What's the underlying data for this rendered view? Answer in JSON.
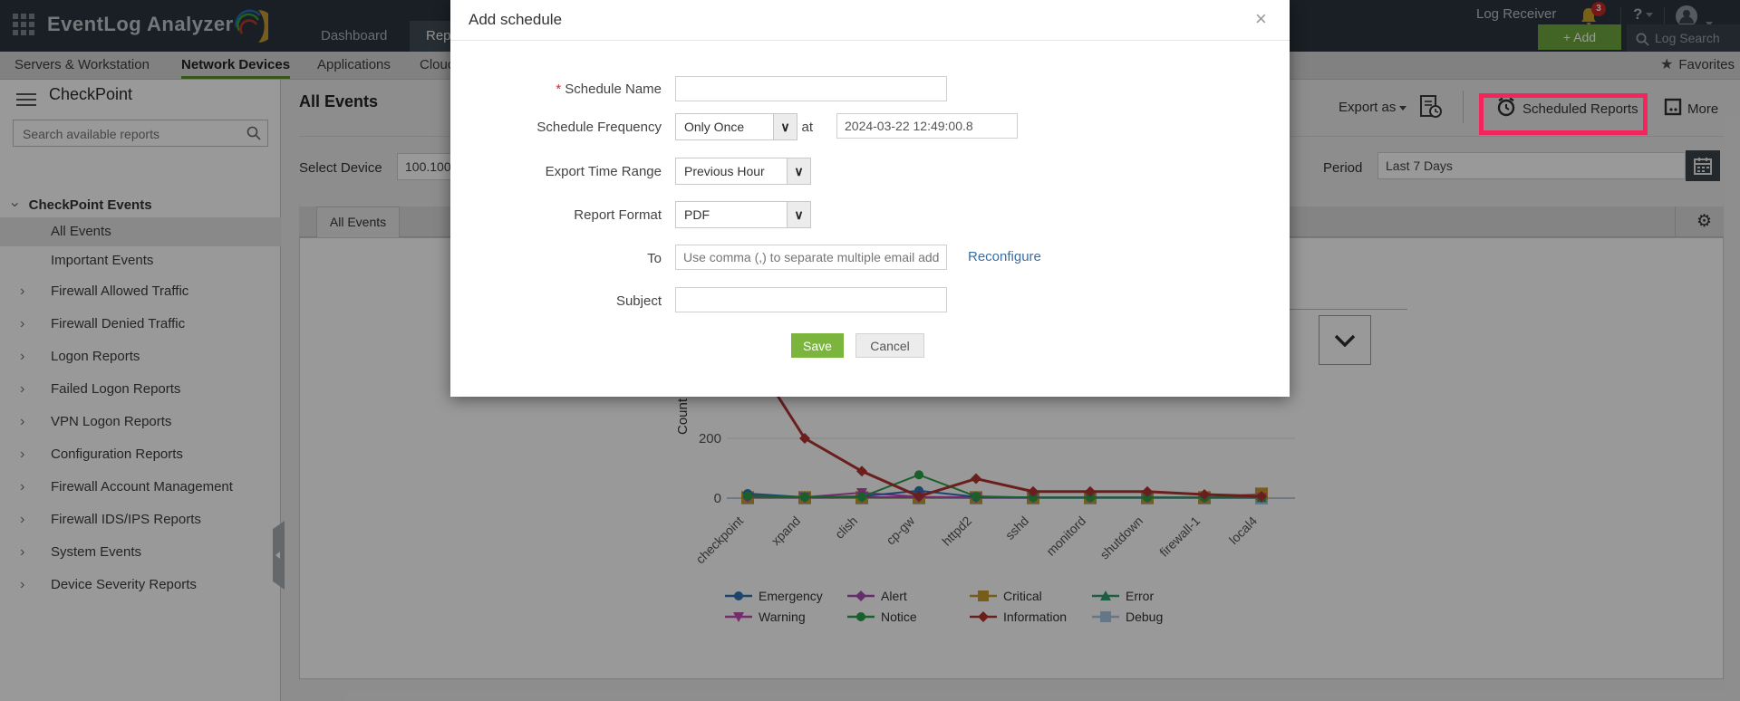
{
  "header": {
    "product": "EventLog Analyzer",
    "tab_dashboard": "Dashboard",
    "tab_reports": "Reports",
    "log_receiver": "Log Receiver",
    "notification_count": "3",
    "help": "?",
    "add_button": "+ Add",
    "log_search": "Log Search"
  },
  "nav": {
    "items": [
      "Servers & Workstation",
      "Network Devices",
      "Applications",
      "Cloud"
    ],
    "favorites": "Favorites"
  },
  "sidebar": {
    "title": "CheckPoint",
    "search_placeholder": "Search available reports",
    "group_label": "CheckPoint Events",
    "items": [
      "All Events",
      "Important Events",
      "Firewall Allowed Traffic",
      "Firewall Denied Traffic",
      "Logon Reports",
      "Failed Logon Reports",
      "VPN Logon Reports",
      "Configuration Reports",
      "Firewall Account Management",
      "Firewall IDS/IPS Reports",
      "System Events",
      "Device Severity Reports"
    ]
  },
  "main": {
    "title": "All Events",
    "export_as": "Export as",
    "scheduled_reports": "Scheduled Reports",
    "more": "More",
    "select_device_label": "Select Device",
    "select_device_value": "100.100",
    "period_label": "Period",
    "period_value": "Last 7 Days",
    "active_tab": "All Events"
  },
  "modal": {
    "title": "Add schedule",
    "close": "×",
    "schedule_name_label": "Schedule Name",
    "schedule_frequency_label": "Schedule Frequency",
    "frequency_value": "Only Once",
    "at_label": "at",
    "datetime_value": "2024-03-22 12:49:00.8",
    "export_time_range_label": "Export Time Range",
    "time_range_value": "Previous Hour",
    "report_format_label": "Report Format",
    "format_value": "PDF",
    "to_label": "To",
    "to_placeholder": "Use comma (,) to separate multiple email addresses",
    "reconfigure": "Reconfigure",
    "subject_label": "Subject",
    "save": "Save",
    "cancel": "Cancel"
  },
  "chart_data": {
    "type": "line",
    "ylabel": "Count",
    "yticks": [
      0,
      200
    ],
    "ylim": [
      0,
      550
    ],
    "grid": "horizontal",
    "legend_position": "bottom",
    "categories": [
      "checkpoint",
      "xpand",
      "clish",
      "cp-gw",
      "httpd2",
      "sshd",
      "monitord",
      "shutdown",
      "firewall-1",
      "local4"
    ],
    "series": [
      {
        "name": "Emergency",
        "color": "#2e73b8",
        "marker": "circle",
        "values": [
          15,
          3,
          6,
          25,
          4,
          2,
          2,
          2,
          2,
          2
        ]
      },
      {
        "name": "Alert",
        "color": "#a94cb3",
        "marker": "diamond",
        "values": [
          3,
          2,
          3,
          3,
          2,
          2,
          2,
          2,
          2,
          2
        ]
      },
      {
        "name": "Critical",
        "color": "#c79b2f",
        "marker": "square",
        "values": [
          2,
          2,
          2,
          2,
          2,
          2,
          2,
          2,
          2,
          14
        ]
      },
      {
        "name": "Error",
        "color": "#2f9c70",
        "marker": "triangle",
        "values": [
          2,
          2,
          2,
          2,
          2,
          2,
          2,
          2,
          2,
          2
        ]
      },
      {
        "name": "Warning",
        "color": "#c14ab4",
        "marker": "triangle-down",
        "values": [
          4,
          3,
          18,
          4,
          3,
          2,
          2,
          2,
          2,
          2
        ]
      },
      {
        "name": "Notice",
        "color": "#2aa04a",
        "marker": "circle",
        "values": [
          8,
          4,
          4,
          78,
          6,
          2,
          2,
          2,
          2,
          2
        ]
      },
      {
        "name": "Information",
        "color": "#b23431",
        "marker": "diamond",
        "values": [
          500,
          200,
          90,
          6,
          65,
          22,
          22,
          22,
          12,
          6
        ]
      },
      {
        "name": "Debug",
        "color": "#a9c7e2",
        "marker": "square",
        "values": [
          0,
          0,
          0,
          0,
          0,
          0,
          0,
          0,
          0,
          0
        ]
      }
    ]
  }
}
